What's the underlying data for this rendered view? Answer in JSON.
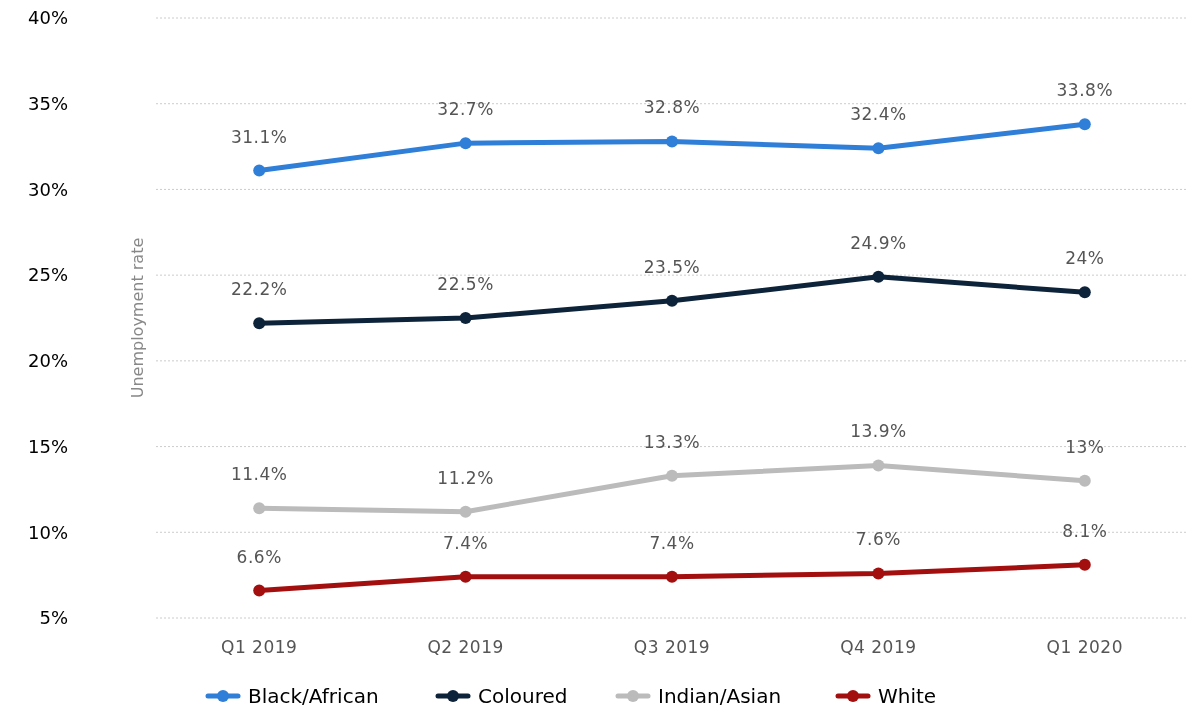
{
  "chart_data": {
    "type": "line",
    "ylabel": "Unemployment rate",
    "categories": [
      "Q1 2019",
      "Q2 2019",
      "Q3 2019",
      "Q4 2019",
      "Q1 2020"
    ],
    "series": [
      {
        "name": "Black/African",
        "color": "#2f7ed8",
        "values": [
          31.1,
          32.7,
          32.8,
          32.4,
          33.8
        ],
        "value_labels": [
          "31.1%",
          "32.7%",
          "32.8%",
          "32.4%",
          "33.8%"
        ]
      },
      {
        "name": "Coloured",
        "color": "#0d233a",
        "values": [
          22.2,
          22.5,
          23.5,
          24.9,
          24
        ],
        "value_labels": [
          "22.2%",
          "22.5%",
          "23.5%",
          "24.9%",
          "24%"
        ]
      },
      {
        "name": "Indian/Asian",
        "color": "#bbbbbb",
        "values": [
          11.4,
          11.2,
          13.3,
          13.9,
          13
        ],
        "value_labels": [
          "11.4%",
          "11.2%",
          "13.3%",
          "13.9%",
          "13%"
        ]
      },
      {
        "name": "White",
        "color": "#a30f0f",
        "values": [
          6.6,
          7.4,
          7.4,
          7.6,
          8.1
        ],
        "value_labels": [
          "6.6%",
          "7.4%",
          "7.4%",
          "7.6%",
          "8.1%"
        ]
      }
    ],
    "ylim": [
      5,
      40
    ],
    "yticks": [
      {
        "value": 5,
        "label": "5%"
      },
      {
        "value": 10,
        "label": "10%"
      },
      {
        "value": 15,
        "label": "15%"
      },
      {
        "value": 20,
        "label": "20%"
      },
      {
        "value": 25,
        "label": "25%"
      },
      {
        "value": 30,
        "label": "30%"
      },
      {
        "value": 35,
        "label": "35%"
      },
      {
        "value": 40,
        "label": "40%"
      }
    ],
    "grid": "y",
    "legend": "bottom",
    "marker": "circle",
    "line_style": "solid"
  }
}
